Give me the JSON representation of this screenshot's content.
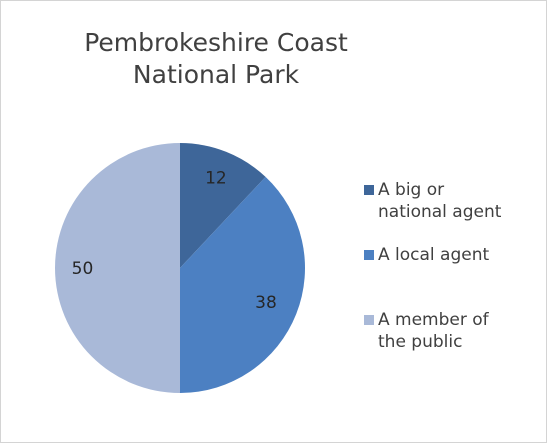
{
  "chart_data": {
    "type": "pie",
    "title_lines": [
      "Pembrokeshire Coast",
      "National Park"
    ],
    "slices": [
      {
        "label": "A big or national agent",
        "value": 12,
        "color": "#3E6699"
      },
      {
        "label": "A local agent",
        "value": 38,
        "color": "#4C80C2"
      },
      {
        "label": "A member of the public",
        "value": 50,
        "color": "#A9B9D8"
      }
    ],
    "legend": {
      "position": "right",
      "items": [
        {
          "lines": [
            "A big or",
            "national agent"
          ],
          "color": "#3E6699"
        },
        {
          "lines": [
            "A local agent"
          ],
          "color": "#4C80C2"
        },
        {
          "lines": [
            "A member of",
            "the public"
          ],
          "color": "#A9B9D8"
        }
      ]
    },
    "data_labels": [
      "12",
      "38",
      "50"
    ]
  }
}
